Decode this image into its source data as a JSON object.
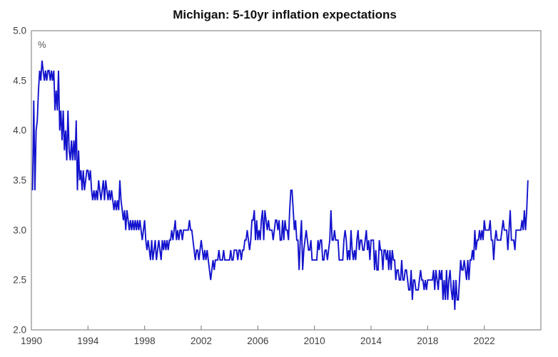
{
  "chart_data": {
    "type": "line",
    "title": "Michigan: 5-10yr inflation expectations",
    "unit_label": "%",
    "grid": false,
    "legend": "none",
    "frame_color": "#8c8c8c",
    "x_axis": {
      "min": 1990,
      "max": 2026,
      "tick_years": [
        1990,
        1994,
        1998,
        2002,
        2006,
        2010,
        2014,
        2018,
        2022
      ]
    },
    "y_axis": {
      "min": 2.0,
      "max": 5.0,
      "ticks": [
        5.0,
        4.5,
        4.0,
        3.5,
        3.0,
        2.5,
        2.0
      ]
    },
    "series": [
      {
        "name": "Michigan 5-10yr inflation expectations",
        "color": "#1313cd",
        "frequency": "monthly",
        "start_year": 1990,
        "start_month": 2,
        "values": [
          3.4,
          4.3,
          3.4,
          4.0,
          4.1,
          4.4,
          4.6,
          4.5,
          4.7,
          4.6,
          4.5,
          4.6,
          4.5,
          4.6,
          4.6,
          4.5,
          4.6,
          4.5,
          4.6,
          4.2,
          4.4,
          4.2,
          4.6,
          4.0,
          4.2,
          3.9,
          4.2,
          3.8,
          4.0,
          3.7,
          4.2,
          3.8,
          3.7,
          3.9,
          3.7,
          3.9,
          3.7,
          4.1,
          3.4,
          3.8,
          3.5,
          3.6,
          3.4,
          3.6,
          3.4,
          3.5,
          3.6,
          3.6,
          3.5,
          3.6,
          3.4,
          3.3,
          3.4,
          3.3,
          3.4,
          3.3,
          3.5,
          3.4,
          3.3,
          3.4,
          3.5,
          3.3,
          3.5,
          3.4,
          3.3,
          3.4,
          3.3,
          3.4,
          3.3,
          3.2,
          3.3,
          3.2,
          3.3,
          3.2,
          3.5,
          3.3,
          3.2,
          3.1,
          3.2,
          3.0,
          3.2,
          3.1,
          3.0,
          3.1,
          3.0,
          3.1,
          3.0,
          3.1,
          3.0,
          3.1,
          3.0,
          3.1,
          3.0,
          2.9,
          3.0,
          3.1,
          2.9,
          2.8,
          2.9,
          2.8,
          2.7,
          2.9,
          2.7,
          2.8,
          2.9,
          2.7,
          2.8,
          2.9,
          2.8,
          2.7,
          2.9,
          2.8,
          2.9,
          2.8,
          2.9,
          2.8,
          2.9,
          2.9,
          3.0,
          2.9,
          3.0,
          3.1,
          2.9,
          3.0,
          2.9,
          3.0,
          3.0,
          2.9,
          3.0,
          3.0,
          3.0,
          3.0,
          3.0,
          3.1,
          3.0,
          3.0,
          2.9,
          2.8,
          2.7,
          2.8,
          2.8,
          2.7,
          2.8,
          2.9,
          2.8,
          2.7,
          2.8,
          2.7,
          2.8,
          2.7,
          2.6,
          2.5,
          2.6,
          2.7,
          2.6,
          2.7,
          2.7,
          2.7,
          2.8,
          2.7,
          2.7,
          2.7,
          2.8,
          2.7,
          2.7,
          2.7,
          2.7,
          2.7,
          2.8,
          2.7,
          2.7,
          2.8,
          2.8,
          2.8,
          2.7,
          2.8,
          2.8,
          2.7,
          2.8,
          2.8,
          2.9,
          2.9,
          3.0,
          2.9,
          2.8,
          2.9,
          3.1,
          3.1,
          3.2,
          2.9,
          3.1,
          2.9,
          3.0,
          2.9,
          3.1,
          3.2,
          2.9,
          3.2,
          3.1,
          3.0,
          3.1,
          3.0,
          3.0,
          3.0,
          2.9,
          3.0,
          3.1,
          3.1,
          3.0,
          3.1,
          2.9,
          2.9,
          3.1,
          2.9,
          3.1,
          3.0,
          3.0,
          2.9,
          3.2,
          3.4,
          3.4,
          3.2,
          3.0,
          3.1,
          2.9,
          2.9,
          2.6,
          2.9,
          3.1,
          2.6,
          2.8,
          2.9,
          3.0,
          2.9,
          2.8,
          2.8,
          2.9,
          2.7,
          2.7,
          2.7,
          2.7,
          2.7,
          2.9,
          2.8,
          2.9,
          2.9,
          2.7,
          2.7,
          2.8,
          2.8,
          2.7,
          2.8,
          2.9,
          3.2,
          2.9,
          2.9,
          3.0,
          2.9,
          2.9,
          2.9,
          2.7,
          2.7,
          2.7,
          2.7,
          2.9,
          3.0,
          2.9,
          2.7,
          2.8,
          2.7,
          3.0,
          2.8,
          2.7,
          2.8,
          2.7,
          2.9,
          3.0,
          2.8,
          2.9,
          2.9,
          2.8,
          2.8,
          2.9,
          3.0,
          2.8,
          2.9,
          2.7,
          2.9,
          2.9,
          2.9,
          2.6,
          2.8,
          2.6,
          2.6,
          2.9,
          2.8,
          2.8,
          2.6,
          2.8,
          2.8,
          2.7,
          2.8,
          2.6,
          2.8,
          2.6,
          2.8,
          2.7,
          2.7,
          2.5,
          2.6,
          2.6,
          2.5,
          2.5,
          2.7,
          2.5,
          2.5,
          2.6,
          2.6,
          2.5,
          2.4,
          2.4,
          2.6,
          2.3,
          2.5,
          2.5,
          2.4,
          2.4,
          2.4,
          2.5,
          2.6,
          2.5,
          2.5,
          2.4,
          2.5,
          2.4,
          2.5,
          2.5,
          2.5,
          2.5,
          2.5,
          2.6,
          2.4,
          2.6,
          2.5,
          2.4,
          2.6,
          2.5,
          2.6,
          2.3,
          2.5,
          2.3,
          2.6,
          2.3,
          2.5,
          2.6,
          2.4,
          2.3,
          2.5,
          2.2,
          2.5,
          2.3,
          2.3,
          2.5,
          2.7,
          2.6,
          2.6,
          2.7,
          2.6,
          2.5,
          2.7,
          2.5,
          2.7,
          2.7,
          2.8,
          2.7,
          3.0,
          2.8,
          2.9,
          2.9,
          3.0,
          2.9,
          3.0,
          2.9,
          3.1,
          3.0,
          3.0,
          3.0,
          3.0,
          3.1,
          2.9,
          2.9,
          2.7,
          2.9,
          3.0,
          2.9,
          2.9,
          2.9,
          2.9,
          3.0,
          3.1,
          3.0,
          3.0,
          3.0,
          2.8,
          3.0,
          3.2,
          2.9,
          2.9,
          2.9,
          2.8,
          3.0,
          3.0,
          3.0,
          3.0,
          3.0,
          3.1,
          3.0,
          3.2,
          3.0,
          3.2,
          3.5
        ]
      }
    ]
  }
}
